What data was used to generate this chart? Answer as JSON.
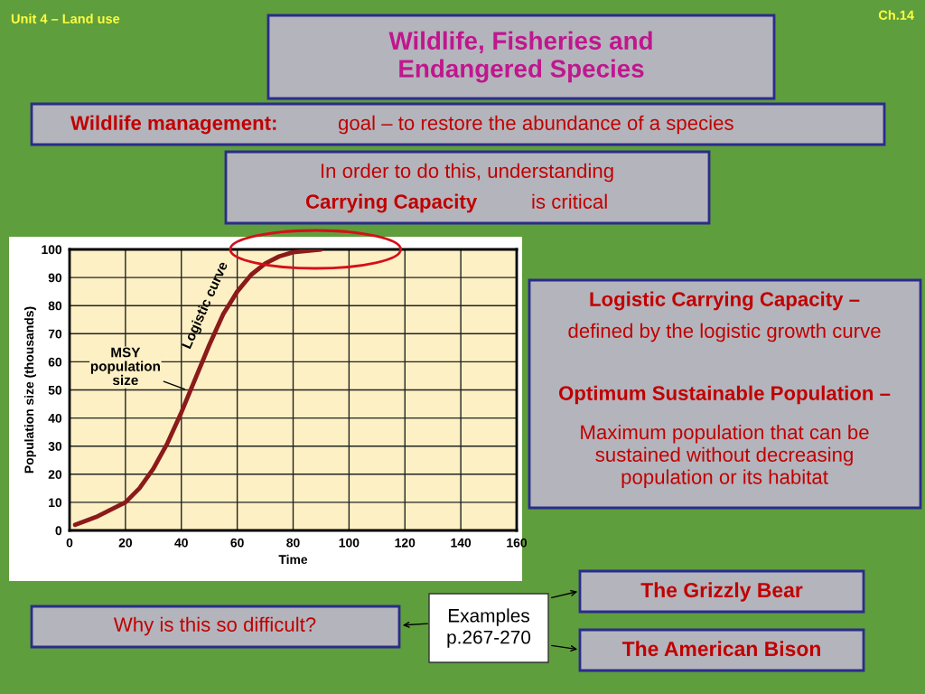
{
  "chart_data": {
    "type": "line",
    "title": "Wildlife, Fisheries and\nEndangered Species",
    "xlabel": "Time",
    "ylabel": "Population size (thousands)",
    "x": [
      2,
      10,
      20,
      25,
      30,
      35,
      40,
      45,
      50,
      55,
      60,
      65,
      70,
      75,
      80,
      90
    ],
    "series": [
      {
        "color": "#8b1a1a",
        "values": [
          2,
          5,
          10,
          15,
          22,
          31,
          42,
          54,
          66,
          77,
          85,
          91,
          95,
          97.5,
          99,
          100
        ]
      }
    ],
    "xlim": [
      0,
      160
    ],
    "ylim": [
      0,
      100
    ],
    "xticks": [
      0,
      20,
      40,
      60,
      80,
      100,
      120,
      140,
      160
    ],
    "yticks": [
      0,
      10,
      20,
      30,
      40,
      50,
      60,
      70,
      80,
      90,
      100
    ],
    "grid": true,
    "legend": false,
    "marker": "none",
    "line_style": "solid",
    "annotations": [
      "Unit 4 – Land use",
      "Ch.14",
      "Wildlife management:",
      "goal – to restore the abundance of a species",
      "In order to do this, understanding",
      "Carrying Capacity",
      "is critical",
      "Logistic Carrying Capacity –",
      "defined by the logistic growth curve",
      "Optimum Sustainable Population –",
      "Maximum population that can be\nsustained without decreasing\npopulation or its habitat",
      "Why is this so difficult?",
      "Examples\np.267-270",
      "The Grizzly Bear",
      "The American Bison",
      {
        "text": "Logistic curve",
        "x": 55,
        "y": 80
      },
      {
        "text": "MSY\npopulation\nsize",
        "x": 42,
        "y": 50
      }
    ]
  }
}
